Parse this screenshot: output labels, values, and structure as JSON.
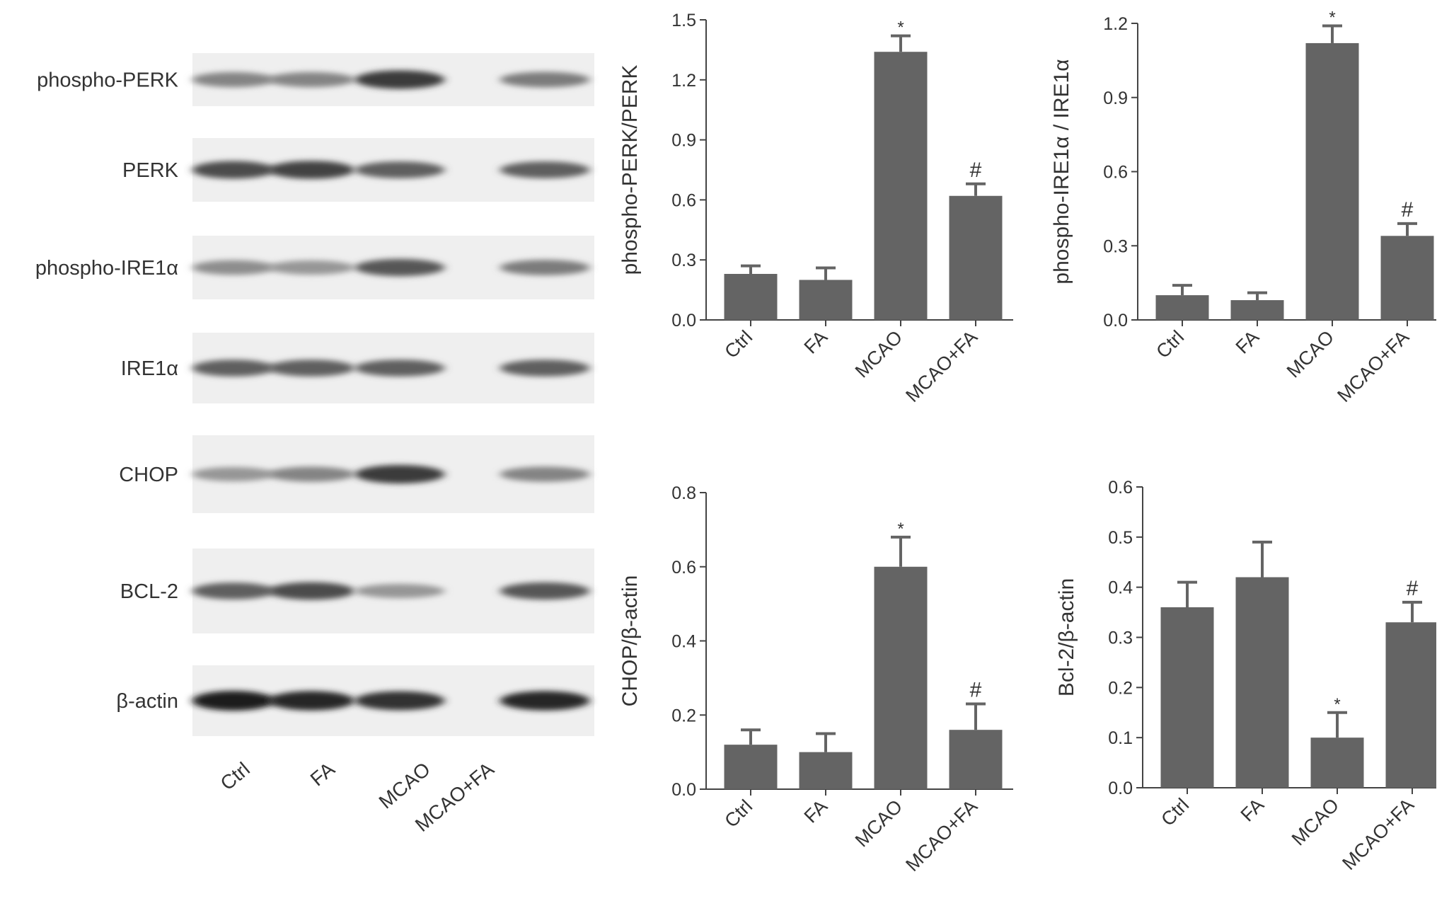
{
  "blot": {
    "rows": [
      {
        "label": "phospho-PERK",
        "intensity": [
          0.45,
          0.45,
          0.85,
          0.5
        ]
      },
      {
        "label": "PERK",
        "intensity": [
          0.75,
          0.8,
          0.65,
          0.65
        ]
      },
      {
        "label": "phospho-IRE1α",
        "intensity": [
          0.4,
          0.35,
          0.7,
          0.5
        ]
      },
      {
        "label": "IRE1α",
        "intensity": [
          0.65,
          0.65,
          0.65,
          0.65
        ]
      },
      {
        "label": "CHOP",
        "intensity": [
          0.35,
          0.45,
          0.85,
          0.45
        ]
      },
      {
        "label": "BCL-2",
        "intensity": [
          0.65,
          0.75,
          0.35,
          0.7
        ]
      },
      {
        "label": "β-actin",
        "intensity": [
          1.0,
          0.95,
          0.9,
          0.95
        ]
      }
    ],
    "columns": [
      "Ctrl",
      "FA",
      "MCAO",
      "MCAO+FA"
    ]
  },
  "chart_data": [
    {
      "type": "bar",
      "categories": [
        "Ctrl",
        "FA",
        "MCAO",
        "MCAO+FA"
      ],
      "values": [
        0.23,
        0.2,
        1.34,
        0.62
      ],
      "errors": [
        0.04,
        0.06,
        0.08,
        0.06
      ],
      "annotations": [
        "",
        "",
        "*",
        "#"
      ],
      "ylabel": "phospho-PERK/PERK",
      "xlabel": "",
      "ylim": [
        0,
        1.5
      ],
      "yticks": [
        "0.0",
        "0.3",
        "0.6",
        "0.9",
        "1.2",
        "1.5"
      ],
      "bar_color": "#646464"
    },
    {
      "type": "bar",
      "categories": [
        "Ctrl",
        "FA",
        "MCAO",
        "MCAO+FA"
      ],
      "values": [
        0.1,
        0.08,
        1.12,
        0.34
      ],
      "errors": [
        0.04,
        0.03,
        0.07,
        0.05
      ],
      "annotations": [
        "",
        "",
        "*",
        "#"
      ],
      "ylabel": "phospho-IRE1α / IRE1α",
      "xlabel": "",
      "ylim": [
        0,
        1.2
      ],
      "yticks": [
        "0.0",
        "0.3",
        "0.6",
        "0.9",
        "1.2"
      ],
      "bar_color": "#646464"
    },
    {
      "type": "bar",
      "categories": [
        "Ctrl",
        "FA",
        "MCAO",
        "MCAO+FA"
      ],
      "values": [
        0.12,
        0.1,
        0.6,
        0.16
      ],
      "errors": [
        0.04,
        0.05,
        0.08,
        0.07
      ],
      "annotations": [
        "",
        "",
        "*",
        "#"
      ],
      "ylabel": "CHOP/β-actin",
      "xlabel": "",
      "ylim": [
        0,
        0.8
      ],
      "yticks": [
        "0.0",
        "0.2",
        "0.4",
        "0.6",
        "0.8"
      ],
      "bar_color": "#646464"
    },
    {
      "type": "bar",
      "categories": [
        "Ctrl",
        "FA",
        "MCAO",
        "MCAO+FA"
      ],
      "values": [
        0.36,
        0.42,
        0.1,
        0.33
      ],
      "errors": [
        0.05,
        0.07,
        0.05,
        0.04
      ],
      "annotations": [
        "",
        "",
        "*",
        "#"
      ],
      "ylabel": "Bcl-2/β-actin",
      "xlabel": "",
      "ylim": [
        0,
        0.6
      ],
      "yticks": [
        "0.0",
        "0.1",
        "0.2",
        "0.3",
        "0.4",
        "0.5",
        "0.6"
      ],
      "bar_color": "#646464"
    }
  ]
}
